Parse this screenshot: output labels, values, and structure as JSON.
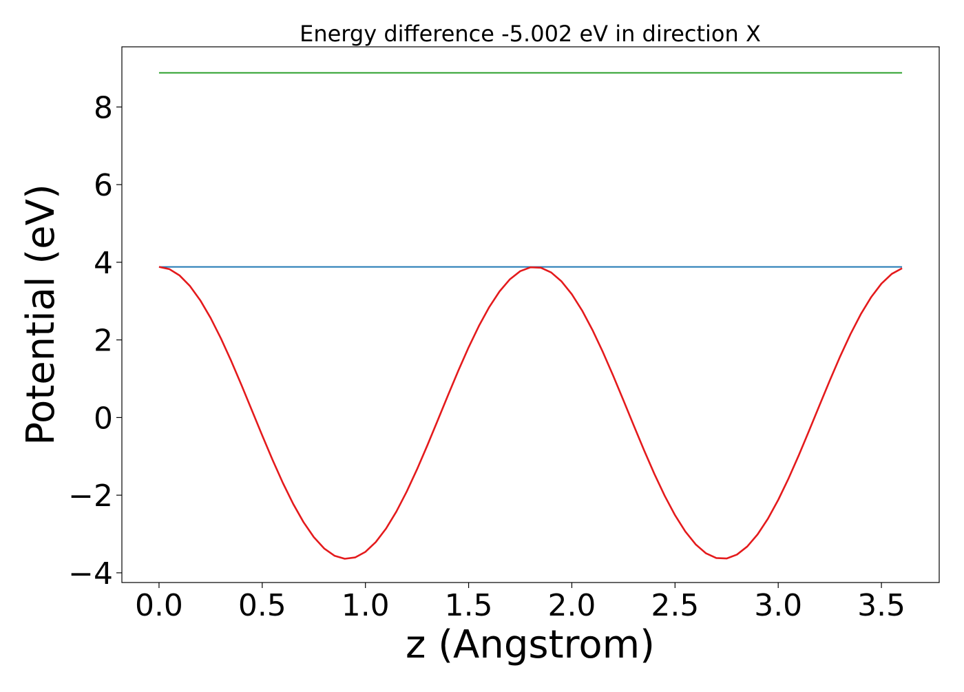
{
  "chart_data": {
    "type": "line",
    "title": "Energy difference -5.002 eV in direction X",
    "xlabel": "z (Angstrom)",
    "ylabel": "Potential (eV)",
    "xlim": [
      -0.18,
      3.78
    ],
    "ylim": [
      -4.25,
      9.55
    ],
    "xticks": [
      0.0,
      0.5,
      1.0,
      1.5,
      2.0,
      2.5,
      3.0,
      3.5
    ],
    "xtick_labels": [
      "0.0",
      "0.5",
      "1.0",
      "1.5",
      "2.0",
      "2.5",
      "3.0",
      "3.5"
    ],
    "yticks": [
      -4,
      -2,
      0,
      2,
      4,
      6,
      8
    ],
    "ytick_labels": [
      "−4",
      "−2",
      "0",
      "2",
      "4",
      "6",
      "8"
    ],
    "grid": false,
    "series": [
      {
        "color": "#2ca02c",
        "style": "constant",
        "x": [
          0.0,
          3.6
        ],
        "y": [
          8.88,
          8.88
        ]
      },
      {
        "color": "#1f77b4",
        "style": "constant",
        "x": [
          0.0,
          3.6
        ],
        "y": [
          3.88,
          3.88
        ]
      },
      {
        "color": "#e41a1c",
        "style": "cosine",
        "x_start": 0.0,
        "x_end": 3.6,
        "points": 73,
        "mean": 0.12,
        "amplitude": 3.76,
        "period": 1.82
      }
    ]
  }
}
